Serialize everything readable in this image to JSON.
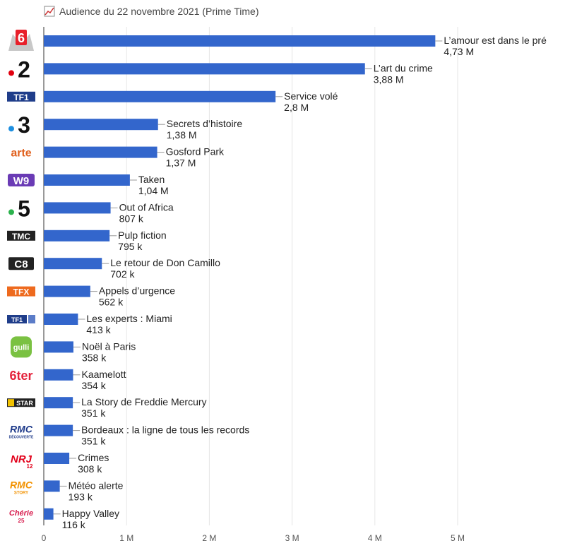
{
  "header": {
    "title": "Audience du 22 novembre 2021 (Prime Time)",
    "icon": "line-chart-icon"
  },
  "chart_data": {
    "type": "bar",
    "orientation": "horizontal",
    "title": "Audience du 22 novembre 2021 (Prime Time)",
    "xlim": [
      0,
      6000000
    ],
    "x_ticks": [
      0,
      1000000,
      2000000,
      3000000,
      4000000,
      5000000
    ],
    "x_tick_labels": [
      "0",
      "1 M",
      "2 M",
      "3 M",
      "4 M",
      "5 M"
    ],
    "bar_color": "#3366cc",
    "grid": true,
    "rows": [
      {
        "channel": "M6",
        "logo": "m6-logo",
        "program": "L’amour est dans le pré",
        "value": 4730000,
        "value_label": "4,73 M"
      },
      {
        "channel": "France 2",
        "logo": "france2-logo",
        "program": "L’art du crime",
        "value": 3880000,
        "value_label": "3,88 M"
      },
      {
        "channel": "TF1",
        "logo": "tf1-logo",
        "program": "Service volé",
        "value": 2800000,
        "value_label": "2,8 M"
      },
      {
        "channel": "France 3",
        "logo": "france3-logo",
        "program": "Secrets d’histoire",
        "value": 1380000,
        "value_label": "1,38 M"
      },
      {
        "channel": "Arte",
        "logo": "arte-logo",
        "program": "Gosford Park",
        "value": 1370000,
        "value_label": "1,37 M"
      },
      {
        "channel": "W9",
        "logo": "w9-logo",
        "program": "Taken",
        "value": 1040000,
        "value_label": "1,04 M"
      },
      {
        "channel": "France 5",
        "logo": "france5-logo",
        "program": "Out of Africa",
        "value": 807000,
        "value_label": "807 k"
      },
      {
        "channel": "TMC",
        "logo": "tmc-logo",
        "program": "Pulp fiction",
        "value": 795000,
        "value_label": "795 k"
      },
      {
        "channel": "C8",
        "logo": "c8-logo",
        "program": "Le retour de Don Camillo",
        "value": 702000,
        "value_label": "702 k"
      },
      {
        "channel": "TFX",
        "logo": "tfx-logo",
        "program": "Appels d’urgence",
        "value": 562000,
        "value_label": "562 k"
      },
      {
        "channel": "TF1 Séries Films",
        "logo": "tf1-series-films-logo",
        "program": "Les experts : Miami",
        "value": 413000,
        "value_label": "413 k"
      },
      {
        "channel": "Gulli",
        "logo": "gulli-logo",
        "program": "Noël à Paris",
        "value": 358000,
        "value_label": "358 k"
      },
      {
        "channel": "6ter",
        "logo": "6ter-logo",
        "program": "Kaamelott",
        "value": 354000,
        "value_label": "354 k"
      },
      {
        "channel": "CStar",
        "logo": "cstar-logo",
        "program": "La Story de Freddie Mercury",
        "value": 351000,
        "value_label": "351 k"
      },
      {
        "channel": "RMC Découverte",
        "logo": "rmc-decouverte-logo",
        "program": "Bordeaux : la ligne de tous les records",
        "value": 351000,
        "value_label": "351 k"
      },
      {
        "channel": "NRJ 12",
        "logo": "nrj12-logo",
        "program": "Crimes",
        "value": 308000,
        "value_label": "308 k"
      },
      {
        "channel": "RMC Story",
        "logo": "rmc-story-logo",
        "program": "Météo alerte",
        "value": 193000,
        "value_label": "193 k"
      },
      {
        "channel": "Chérie 25",
        "logo": "cherie25-logo",
        "program": "Happy Valley",
        "value": 116000,
        "value_label": "116 k"
      }
    ]
  }
}
